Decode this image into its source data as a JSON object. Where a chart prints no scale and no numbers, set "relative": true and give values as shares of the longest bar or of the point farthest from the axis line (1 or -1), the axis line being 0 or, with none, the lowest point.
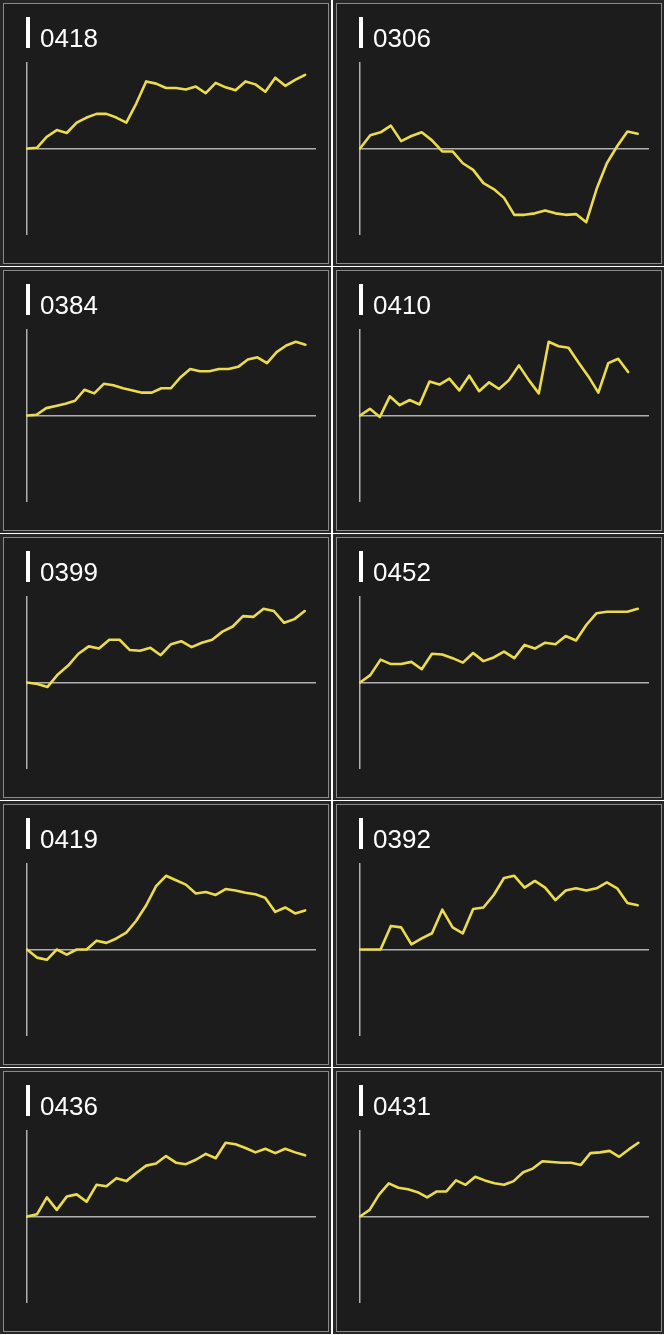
{
  "chart_data": [
    {
      "type": "line",
      "title": "0418",
      "relative": true,
      "color": "#ecdc4c",
      "categories": [
        null,
        null,
        null,
        null,
        null,
        null,
        null,
        null,
        null,
        null,
        null,
        null,
        null,
        null,
        null,
        null,
        null,
        null,
        null,
        null,
        null,
        null,
        null,
        null,
        null,
        null,
        null,
        null,
        null,
        null
      ],
      "values": [
        0,
        0.01,
        0.16,
        0.25,
        0.21,
        0.35,
        0.42,
        0.47,
        0.47,
        0.42,
        0.35,
        0.61,
        0.91,
        0.88,
        0.82,
        0.82,
        0.8,
        0.84,
        0.75,
        0.89,
        0.83,
        0.79,
        0.91,
        0.87,
        0.77,
        0.96,
        0.85,
        0.93,
        1,
        null
      ]
    },
    {
      "type": "line",
      "title": "0306",
      "relative": true,
      "color": "#ecdc4c",
      "categories": [
        null,
        null,
        null,
        null,
        null,
        null,
        null,
        null,
        null,
        null,
        null,
        null,
        null,
        null,
        null,
        null,
        null,
        null,
        null,
        null,
        null,
        null,
        null,
        null,
        null,
        null,
        null,
        null,
        null
      ],
      "values": [
        0,
        0.18,
        0.22,
        0.31,
        0.1,
        0.17,
        0.22,
        0.11,
        -0.04,
        -0.04,
        -0.2,
        -0.29,
        -0.47,
        -0.55,
        -0.67,
        -0.9,
        -0.9,
        -0.88,
        -0.84,
        -0.88,
        -0.9,
        -0.89,
        -1,
        -0.55,
        -0.2,
        0.03,
        0.23,
        0.2,
        null
      ]
    },
    {
      "type": "line",
      "title": "0384",
      "relative": true,
      "color": "#ecdc4c",
      "categories": [
        null,
        null,
        null,
        null,
        null,
        null,
        null,
        null,
        null,
        null,
        null,
        null,
        null,
        null,
        null,
        null,
        null,
        null,
        null,
        null,
        null,
        null,
        null,
        null,
        null,
        null,
        null,
        null,
        null,
        null,
        null
      ],
      "values": [
        0,
        0.01,
        0.1,
        0.13,
        0.16,
        0.2,
        0.35,
        0.3,
        0.43,
        0.41,
        0.37,
        0.34,
        0.31,
        0.31,
        0.37,
        0.37,
        0.52,
        0.63,
        0.6,
        0.6,
        0.63,
        0.63,
        0.66,
        0.76,
        0.79,
        0.71,
        0.86,
        0.95,
        1,
        0.96,
        null
      ]
    },
    {
      "type": "line",
      "title": "0410",
      "relative": true,
      "color": "#ecdc4c",
      "categories": [
        null,
        null,
        null,
        null,
        null,
        null,
        null,
        null,
        null,
        null,
        null,
        null,
        null,
        null,
        null,
        null,
        null,
        null,
        null,
        null,
        null,
        null,
        null,
        null,
        null,
        null,
        null,
        null,
        null,
        null
      ],
      "values": [
        0,
        0.09,
        -0.02,
        0.26,
        0.14,
        0.21,
        0.15,
        0.46,
        0.42,
        0.5,
        0.34,
        0.54,
        0.33,
        0.45,
        0.36,
        0.48,
        0.68,
        0.48,
        0.3,
        1,
        0.94,
        0.92,
        0.72,
        0.53,
        0.31,
        0.71,
        0.77,
        0.59,
        null,
        null
      ]
    },
    {
      "type": "line",
      "title": "0399",
      "relative": true,
      "color": "#ecdc4c",
      "categories": [
        null,
        null,
        null,
        null,
        null,
        null,
        null,
        null,
        null,
        null,
        null,
        null,
        null,
        null,
        null,
        null,
        null,
        null,
        null,
        null,
        null,
        null,
        null,
        null,
        null,
        null,
        null,
        null,
        null
      ],
      "values": [
        0,
        -0.02,
        -0.06,
        0.11,
        0.23,
        0.39,
        0.49,
        0.46,
        0.58,
        0.58,
        0.44,
        0.43,
        0.47,
        0.37,
        0.52,
        0.56,
        0.48,
        0.54,
        0.58,
        0.69,
        0.76,
        0.9,
        0.89,
        1,
        0.97,
        0.81,
        0.86,
        0.97,
        null
      ]
    },
    {
      "type": "line",
      "title": "0452",
      "relative": true,
      "color": "#ecdc4c",
      "categories": [
        null,
        null,
        null,
        null,
        null,
        null,
        null,
        null,
        null,
        null,
        null,
        null,
        null,
        null,
        null,
        null,
        null,
        null,
        null,
        null,
        null,
        null,
        null,
        null,
        null,
        null,
        null,
        null,
        null
      ],
      "values": [
        0,
        0.1,
        0.31,
        0.25,
        0.25,
        0.28,
        0.18,
        0.39,
        0.38,
        0.33,
        0.27,
        0.4,
        0.29,
        0.34,
        0.42,
        0.33,
        0.51,
        0.46,
        0.54,
        0.52,
        0.63,
        0.57,
        0.78,
        0.94,
        0.96,
        0.96,
        0.96,
        1,
        null
      ]
    },
    {
      "type": "line",
      "title": "0419",
      "relative": true,
      "color": "#ecdc4c",
      "categories": [
        null,
        null,
        null,
        null,
        null,
        null,
        null,
        null,
        null,
        null,
        null,
        null,
        null,
        null,
        null,
        null,
        null,
        null,
        null,
        null,
        null,
        null,
        null,
        null,
        null,
        null,
        null,
        null,
        null,
        null
      ],
      "values": [
        0,
        -0.11,
        -0.14,
        0,
        -0.07,
        0,
        0,
        0.12,
        0.09,
        0.15,
        0.23,
        0.39,
        0.6,
        0.86,
        1,
        0.94,
        0.88,
        0.76,
        0.78,
        0.74,
        0.82,
        0.8,
        0.77,
        0.75,
        0.7,
        0.51,
        0.57,
        0.49,
        0.53,
        null
      ]
    },
    {
      "type": "line",
      "title": "0392",
      "relative": true,
      "color": "#ecdc4c",
      "categories": [
        null,
        null,
        null,
        null,
        null,
        null,
        null,
        null,
        null,
        null,
        null,
        null,
        null,
        null,
        null,
        null,
        null,
        null,
        null,
        null,
        null,
        null,
        null,
        null,
        null,
        null,
        null,
        null,
        null
      ],
      "values": [
        0,
        0,
        0,
        0.32,
        0.3,
        0.07,
        0.15,
        0.22,
        0.54,
        0.3,
        0.22,
        0.55,
        0.57,
        0.74,
        0.97,
        1,
        0.84,
        0.93,
        0.84,
        0.67,
        0.8,
        0.83,
        0.8,
        0.83,
        0.91,
        0.83,
        0.63,
        0.6,
        null
      ]
    },
    {
      "type": "line",
      "title": "0436",
      "relative": true,
      "color": "#ecdc4c",
      "categories": [
        null,
        null,
        null,
        null,
        null,
        null,
        null,
        null,
        null,
        null,
        null,
        null,
        null,
        null,
        null,
        null,
        null,
        null,
        null,
        null,
        null,
        null,
        null,
        null,
        null,
        null,
        null,
        null,
        null,
        null
      ],
      "values": [
        0,
        0.03,
        0.26,
        0.09,
        0.27,
        0.3,
        0.2,
        0.43,
        0.41,
        0.52,
        0.48,
        0.59,
        0.69,
        0.72,
        0.82,
        0.73,
        0.71,
        0.77,
        0.85,
        0.79,
        1,
        0.98,
        0.93,
        0.87,
        0.92,
        0.86,
        0.92,
        0.87,
        0.83,
        null
      ]
    },
    {
      "type": "line",
      "title": "0431",
      "relative": true,
      "color": "#ecdc4c",
      "categories": [
        null,
        null,
        null,
        null,
        null,
        null,
        null,
        null,
        null,
        null,
        null,
        null,
        null,
        null,
        null,
        null,
        null,
        null,
        null,
        null,
        null,
        null,
        null,
        null,
        null,
        null,
        null,
        null,
        null,
        null,
        null
      ],
      "values": [
        0,
        0.09,
        0.3,
        0.45,
        0.39,
        0.37,
        0.33,
        0.26,
        0.34,
        0.34,
        0.49,
        0.43,
        0.54,
        0.49,
        0.45,
        0.43,
        0.48,
        0.6,
        0.65,
        0.75,
        0.74,
        0.73,
        0.73,
        0.7,
        0.86,
        0.87,
        0.89,
        0.81,
        0.91,
        1,
        null
      ]
    }
  ]
}
